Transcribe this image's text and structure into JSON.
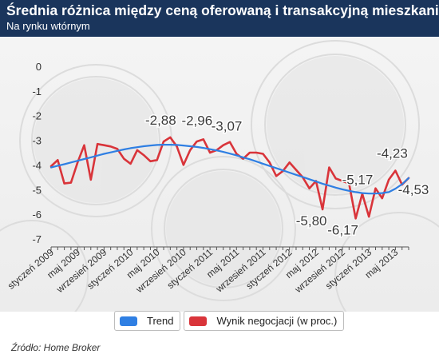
{
  "header": {
    "title": "Średnia różnica między ceną oferowaną i transakcyjną mieszkania",
    "subtitle": "Na rynku wtórnym"
  },
  "legend": {
    "trend_label": "Trend",
    "result_label": "Wynik negocjacji (w proc.)"
  },
  "source": "Źródło: Home Broker",
  "colors": {
    "header_bg": "#1a355c",
    "trend": "#2f7fe3",
    "result": "#d9343a"
  },
  "chart_data": {
    "type": "line",
    "title": "Średnia różnica między ceną oferowaną i transakcyjną mieszkania",
    "subtitle": "Na rynku wtórnym",
    "xlabel": "",
    "ylabel": "",
    "ylim": [
      -7,
      0
    ],
    "yticks": [
      "0",
      "-1",
      "-2",
      "-3",
      "-4",
      "-5",
      "-6",
      "-7"
    ],
    "grid": false,
    "legend_position": "bottom",
    "categories": [
      "styczeń 2009",
      "luty 2009",
      "marzec 2009",
      "kwiecień 2009",
      "maj 2009",
      "czerwiec 2009",
      "lipiec 2009",
      "sierpień 2009",
      "wrzesień 2009",
      "październik 2009",
      "listopad 2009",
      "grudzień 2009",
      "styczeń 2010",
      "luty 2010",
      "marzec 2010",
      "kwiecień 2010",
      "maj 2010",
      "czerwiec 2010",
      "lipiec 2010",
      "sierpień 2010",
      "wrzesień 2010",
      "październik 2010",
      "listopad 2010",
      "grudzień 2010",
      "styczeń 2011",
      "luty 2011",
      "marzec 2011",
      "kwiecień 2011",
      "maj 2011",
      "czerwiec 2011",
      "lipiec 2011",
      "sierpień 2011",
      "wrzesień 2011",
      "październik 2011",
      "listopad 2011",
      "grudzień 2011",
      "styczeń 2012",
      "luty 2012",
      "marzec 2012",
      "kwiecień 2012",
      "maj 2012",
      "czerwiec 2012",
      "lipiec 2012",
      "sierpień 2012",
      "wrzesień 2012",
      "październik 2012",
      "listopad 2012",
      "grudzień 2012",
      "styczeń 2013",
      "luty 2013",
      "marzec 2013",
      "kwiecień 2013",
      "maj 2013",
      "czerwiec 2013",
      "lipiec 2013"
    ],
    "x_tick_labels": [
      {
        "index": 0,
        "label": "styczeń 2009"
      },
      {
        "index": 4,
        "label": "maj 2009"
      },
      {
        "index": 8,
        "label": "wrzesień 2009"
      },
      {
        "index": 12,
        "label": "styczeń 2010"
      },
      {
        "index": 16,
        "label": "maj 2010"
      },
      {
        "index": 20,
        "label": "wrzesień 2010"
      },
      {
        "index": 24,
        "label": "styczeń 2011"
      },
      {
        "index": 28,
        "label": "maj 2011"
      },
      {
        "index": 32,
        "label": "wrzesień 2011"
      },
      {
        "index": 36,
        "label": "styczeń 2012"
      },
      {
        "index": 40,
        "label": "maj 2012"
      },
      {
        "index": 44,
        "label": "wrzesień 2012"
      },
      {
        "index": 48,
        "label": "styczeń 2013"
      },
      {
        "index": 52,
        "label": "maj 2013"
      }
    ],
    "series": [
      {
        "name": "Trend",
        "color": "#2f7fe3",
        "values": [
          -4.1,
          -4.03,
          -3.97,
          -3.9,
          -3.83,
          -3.76,
          -3.69,
          -3.62,
          -3.55,
          -3.49,
          -3.43,
          -3.37,
          -3.32,
          -3.28,
          -3.24,
          -3.21,
          -3.19,
          -3.18,
          -3.18,
          -3.19,
          -3.21,
          -3.24,
          -3.27,
          -3.31,
          -3.36,
          -3.41,
          -3.47,
          -3.54,
          -3.61,
          -3.69,
          -3.77,
          -3.86,
          -3.95,
          -4.04,
          -4.13,
          -4.22,
          -4.31,
          -4.4,
          -4.49,
          -4.58,
          -4.67,
          -4.76,
          -4.84,
          -4.92,
          -4.99,
          -5.05,
          -5.1,
          -5.14,
          -5.16,
          -5.16,
          -5.14,
          -5.1,
          -4.96,
          -4.78,
          -4.53
        ]
      },
      {
        "name": "Wynik negocjacji (w proc.)",
        "color": "#d9343a",
        "values": [
          -4.05,
          -3.8,
          -4.75,
          -4.72,
          -3.9,
          -3.2,
          -4.6,
          -3.15,
          -3.2,
          -3.25,
          -3.35,
          -3.75,
          -3.95,
          -3.4,
          -3.6,
          -3.85,
          -3.8,
          -3.05,
          -2.88,
          -3.25,
          -4.0,
          -3.4,
          -3.05,
          -2.96,
          -3.5,
          -3.4,
          -3.2,
          -3.07,
          -3.55,
          -3.75,
          -3.5,
          -3.5,
          -3.55,
          -3.9,
          -4.45,
          -4.25,
          -3.9,
          -4.2,
          -4.5,
          -4.95,
          -4.65,
          -5.8,
          -4.1,
          -4.55,
          -4.65,
          -4.75,
          -6.17,
          -5.17,
          -6.1,
          -4.95,
          -5.35,
          -4.6,
          -4.23,
          -4.8,
          -4.53
        ]
      }
    ],
    "annotations": [
      {
        "index": 18,
        "value": -2.88,
        "label": "-2,88"
      },
      {
        "index": 23,
        "value": -2.96,
        "label": "-2,96"
      },
      {
        "index": 27,
        "value": -3.07,
        "label": "-3,07"
      },
      {
        "index": 41,
        "value": -5.8,
        "label": "-5,80"
      },
      {
        "index": 46,
        "value": -6.17,
        "label": "-6,17"
      },
      {
        "index": 47,
        "value": -5.17,
        "label": "-5,17"
      },
      {
        "index": 52,
        "value": -4.23,
        "label": "-4,23"
      },
      {
        "index": 54,
        "value": -4.53,
        "label": "-4,53"
      }
    ]
  }
}
